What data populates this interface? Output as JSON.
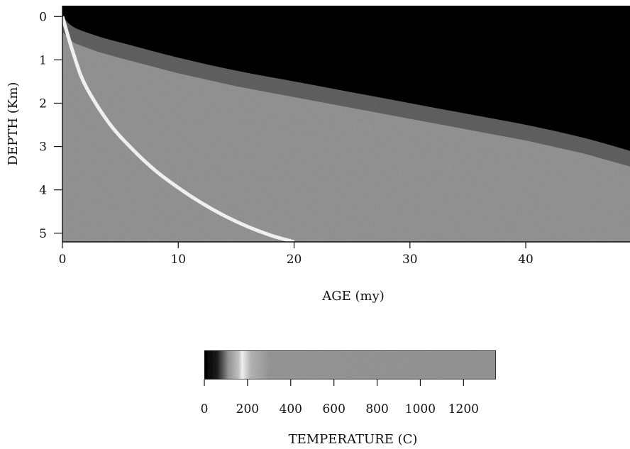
{
  "chart_data": [
    {
      "type": "heatmap",
      "title": "",
      "xlabel": "AGE (my)",
      "ylabel": "DEPTH (Km)",
      "xlim": [
        0,
        49
      ],
      "ylim": [
        5.2,
        -0.25
      ],
      "x_ticks": [
        0,
        10,
        20,
        30,
        40
      ],
      "y_ticks": [
        0,
        1,
        2,
        3,
        4,
        5
      ],
      "features": [
        {
          "name": "",
          "description": "",
          "x": [
            0,
            1,
            2,
            4,
            6,
            8,
            10,
            12,
            14,
            16,
            18,
            20
          ],
          "y": [
            0.0,
            0.9,
            1.6,
            2.45,
            3.05,
            3.55,
            3.95,
            4.3,
            4.6,
            4.85,
            5.05,
            5.2
          ]
        },
        {
          "name": "",
          "description": "",
          "x": [
            0,
            1,
            3,
            5,
            10,
            15,
            20,
            25,
            30,
            35,
            40,
            45,
            49
          ],
          "y": [
            0.0,
            0.25,
            0.45,
            0.6,
            0.95,
            1.25,
            1.5,
            1.75,
            2.0,
            2.25,
            2.5,
            2.8,
            3.1
          ]
        }
      ]
    },
    {
      "type": "colorbar",
      "xlabel": "TEMPERATURE (C)",
      "range": [
        0,
        1350
      ],
      "ticks": [
        0,
        200,
        400,
        600,
        800,
        1000,
        1200
      ],
      "stops": [
        {
          "t": 0,
          "color": "#000000"
        },
        {
          "t": 60,
          "color": "#1f1f1f"
        },
        {
          "t": 110,
          "color": "#9a9a9a"
        },
        {
          "t": 160,
          "color": "#cfcfcf"
        },
        {
          "t": 175,
          "color": "#ffffff"
        },
        {
          "t": 215,
          "color": "#bdbdbd"
        },
        {
          "t": 300,
          "color": "#9d9d9d"
        },
        {
          "t": 1350,
          "color": "#9a9a9a"
        }
      ]
    }
  ],
  "colors": {
    "cold": "#000000",
    "isotherm": "#ffffff",
    "hot": "#9a9a9a"
  }
}
